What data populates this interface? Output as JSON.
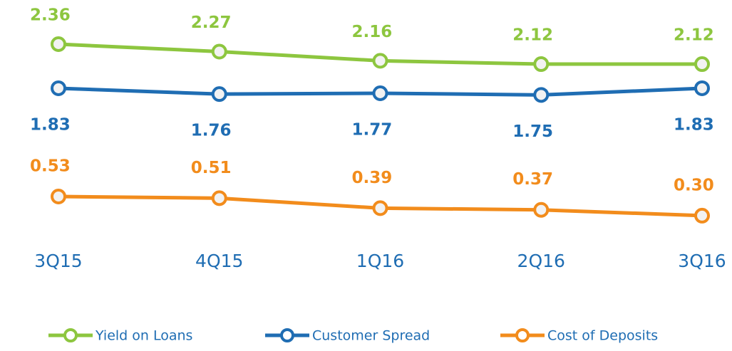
{
  "chart_data": {
    "type": "line",
    "categories": [
      "3Q15",
      "4Q15",
      "1Q16",
      "2Q16",
      "3Q16"
    ],
    "series": [
      {
        "name": "Yield on Loans",
        "color": "#8dc63f",
        "values": [
          2.36,
          2.27,
          2.16,
          2.12,
          2.12
        ]
      },
      {
        "name": "Customer Spread",
        "color": "#1f6db3",
        "values": [
          1.83,
          1.76,
          1.77,
          1.75,
          1.83
        ]
      },
      {
        "name": "Cost of Deposits",
        "color": "#f28c1c",
        "values": [
          0.53,
          0.51,
          0.39,
          0.37,
          0.3
        ],
        "value_labels": [
          "0.53",
          "0.51",
          "0.39",
          "0.37",
          "0.30"
        ]
      }
    ],
    "ylim": [
      0,
      2.5
    ]
  }
}
